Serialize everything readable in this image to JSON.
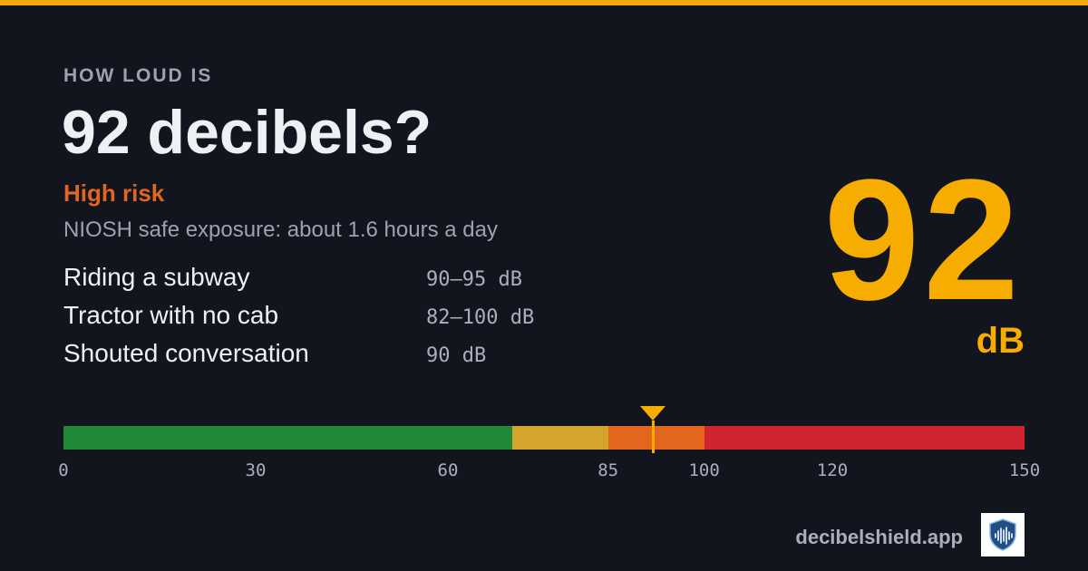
{
  "eyebrow": "HOW LOUD IS",
  "title": "92 decibels?",
  "risk_label": "High risk",
  "exposure_text": "NIOSH safe exposure: about 1.6 hours a day",
  "examples": [
    {
      "name": "Riding a subway",
      "range": "90–95 dB"
    },
    {
      "name": "Tractor with no cab",
      "range": "82–100 dB"
    },
    {
      "name": "Shouted conversation",
      "range": "90 dB"
    }
  ],
  "level": {
    "value": "92",
    "unit": "dB"
  },
  "scale": {
    "min": 0,
    "max": 150,
    "marker_value": 92,
    "ticks": [
      "0",
      "30",
      "60",
      "85",
      "100",
      "120",
      "150"
    ],
    "bands": [
      {
        "from": 0,
        "to": 70,
        "color": "#218838"
      },
      {
        "from": 70,
        "to": 85,
        "color": "#d4a52c"
      },
      {
        "from": 85,
        "to": 100,
        "color": "#e2661e"
      },
      {
        "from": 100,
        "to": 150,
        "color": "#d1232f"
      }
    ]
  },
  "colors": {
    "accent": "#f7ad00",
    "risk": "#e2661e",
    "background": "#12151d"
  },
  "footer": {
    "domain": "decibelshield.app",
    "logo_icon": "shield-soundwave-icon"
  }
}
